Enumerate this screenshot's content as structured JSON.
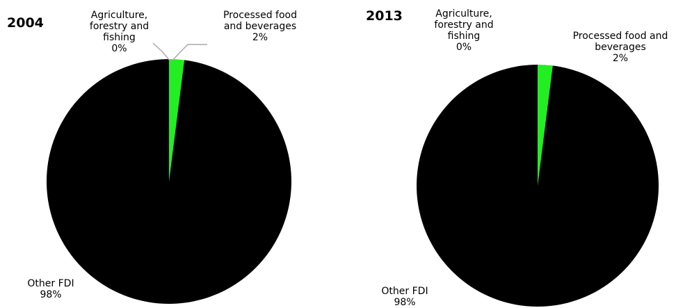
{
  "chart_data": [
    {
      "type": "pie",
      "title": "2004",
      "legend": "none",
      "slices": [
        {
          "label_lines": [
            "Processed food",
            "and beverages"
          ],
          "value_label": "2%",
          "value": 2,
          "color": "#22ee22"
        },
        {
          "label_lines": [
            "Agriculture,",
            "forestry and",
            "fishing"
          ],
          "value_label": "0%",
          "value": 0,
          "color": "#aaaaaa"
        },
        {
          "label_lines": [
            "Other FDI"
          ],
          "value_label": "98%",
          "value": 98,
          "color": "#000000"
        }
      ]
    },
    {
      "type": "pie",
      "title": "2013",
      "legend": "none",
      "slices": [
        {
          "label_lines": [
            "Processed food and",
            "beverages"
          ],
          "value_label": "2%",
          "value": 2,
          "color": "#22ee22"
        },
        {
          "label_lines": [
            "Agriculture,",
            "forestry and",
            "fishing"
          ],
          "value_label": "0%",
          "value": 0,
          "color": "#aaaaaa"
        },
        {
          "label_lines": [
            "Other FDI"
          ],
          "value_label": "98%",
          "value": 98,
          "color": "#000000"
        }
      ]
    }
  ]
}
